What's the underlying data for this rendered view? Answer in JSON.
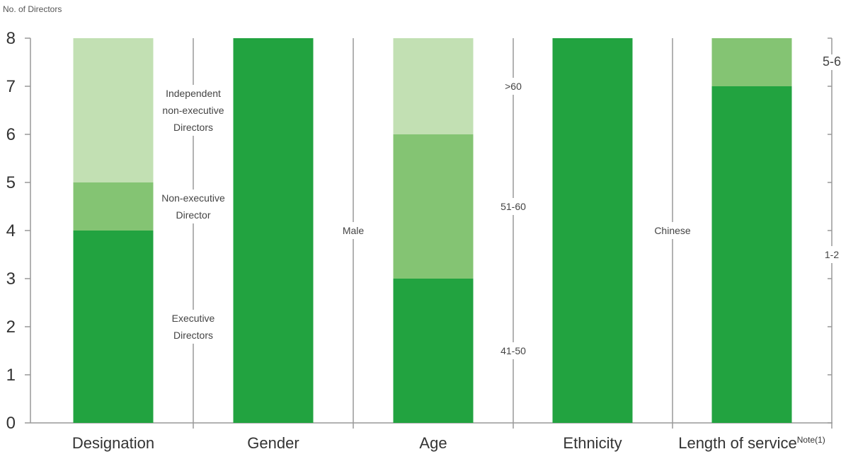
{
  "chart_data": {
    "type": "bar",
    "stacked": true,
    "ylabel": "No. of Directors",
    "ylim": [
      0,
      8
    ],
    "yticks": [
      0,
      1,
      2,
      3,
      4,
      5,
      6,
      7,
      8
    ],
    "grid": false,
    "categories": [
      {
        "name": "Designation",
        "segments": [
          {
            "label_lines": [
              "Executive",
              "Directors"
            ],
            "value": 4,
            "color": "#22a340"
          },
          {
            "label_lines": [
              "Non-executive",
              "Director"
            ],
            "value": 1,
            "color": "#84c473"
          },
          {
            "label_lines": [
              "Independent",
              "non-executive",
              "Directors"
            ],
            "value": 3,
            "color": "#c2e0b3"
          }
        ]
      },
      {
        "name": "Gender",
        "segments": [
          {
            "label_lines": [
              "Male"
            ],
            "value": 8,
            "color": "#22a340"
          }
        ]
      },
      {
        "name": "Age",
        "segments": [
          {
            "label_lines": [
              "41-50"
            ],
            "value": 3,
            "color": "#22a340"
          },
          {
            "label_lines": [
              "51-60"
            ],
            "value": 3,
            "color": "#84c473"
          },
          {
            "label_lines": [
              ">60"
            ],
            "value": 2,
            "color": "#c2e0b3"
          }
        ]
      },
      {
        "name": "Ethnicity",
        "segments": [
          {
            "label_lines": [
              "Chinese"
            ],
            "value": 8,
            "color": "#22a340"
          }
        ]
      },
      {
        "name": "Length of service",
        "superscript": "Note(1)",
        "segments": [
          {
            "label_lines": [
              "1-2"
            ],
            "value": 7,
            "color": "#22a340"
          },
          {
            "label_lines": [
              "5-6"
            ],
            "value": 1,
            "color": "#84c473"
          }
        ]
      }
    ]
  }
}
